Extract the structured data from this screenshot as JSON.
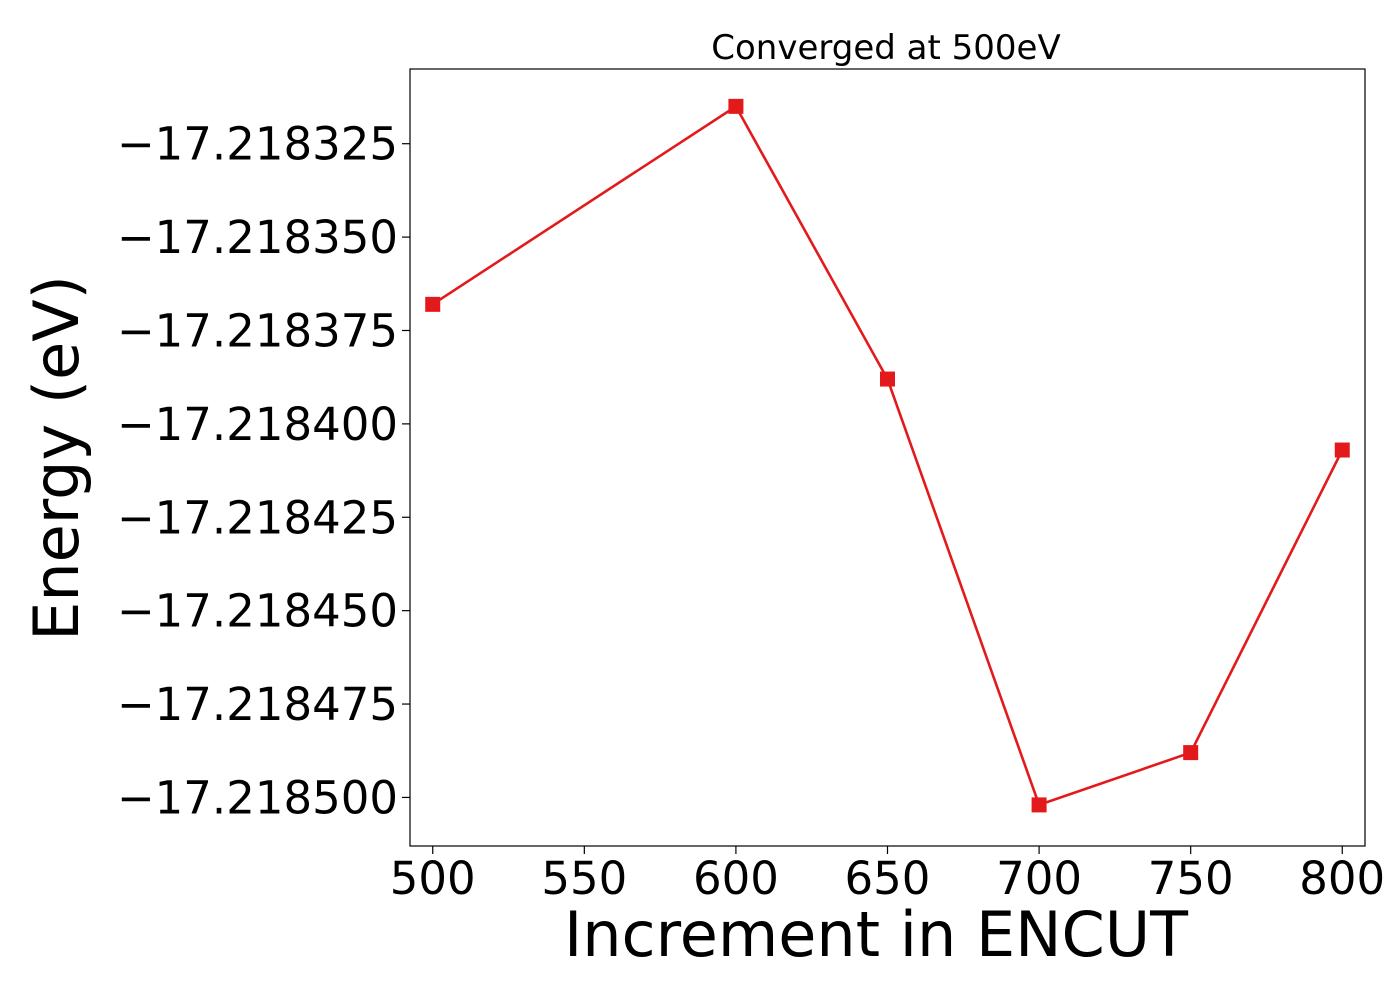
{
  "chart_data": {
    "type": "line",
    "title": "Converged at 500eV",
    "xlabel": "Increment in ENCUT",
    "ylabel": "Energy (eV)",
    "x": [
      500,
      600,
      650,
      700,
      750,
      800
    ],
    "series": [
      {
        "values": [
          -17.218368,
          -17.218315,
          -17.218388,
          -17.218502,
          -17.218488,
          -17.218407
        ],
        "color": "#e31a1c",
        "marker": "square"
      }
    ],
    "xlim": [
      492.5,
      807.5
    ],
    "ylim": [
      -17.218513,
      -17.218305
    ],
    "xticks": [
      500,
      550,
      600,
      650,
      700,
      750,
      800
    ],
    "xtick_labels": [
      "500",
      "550",
      "600",
      "650",
      "700",
      "750",
      "800"
    ],
    "yticks": [
      -17.218325,
      -17.21835,
      -17.218375,
      -17.2184,
      -17.218425,
      -17.21845,
      -17.218475,
      -17.2185
    ],
    "ytick_labels": [
      "−17.218325",
      "−17.218350",
      "−17.218375",
      "−17.218400",
      "−17.218425",
      "−17.218450",
      "−17.218475",
      "−17.218500"
    ],
    "grid": false,
    "legend": "none"
  }
}
